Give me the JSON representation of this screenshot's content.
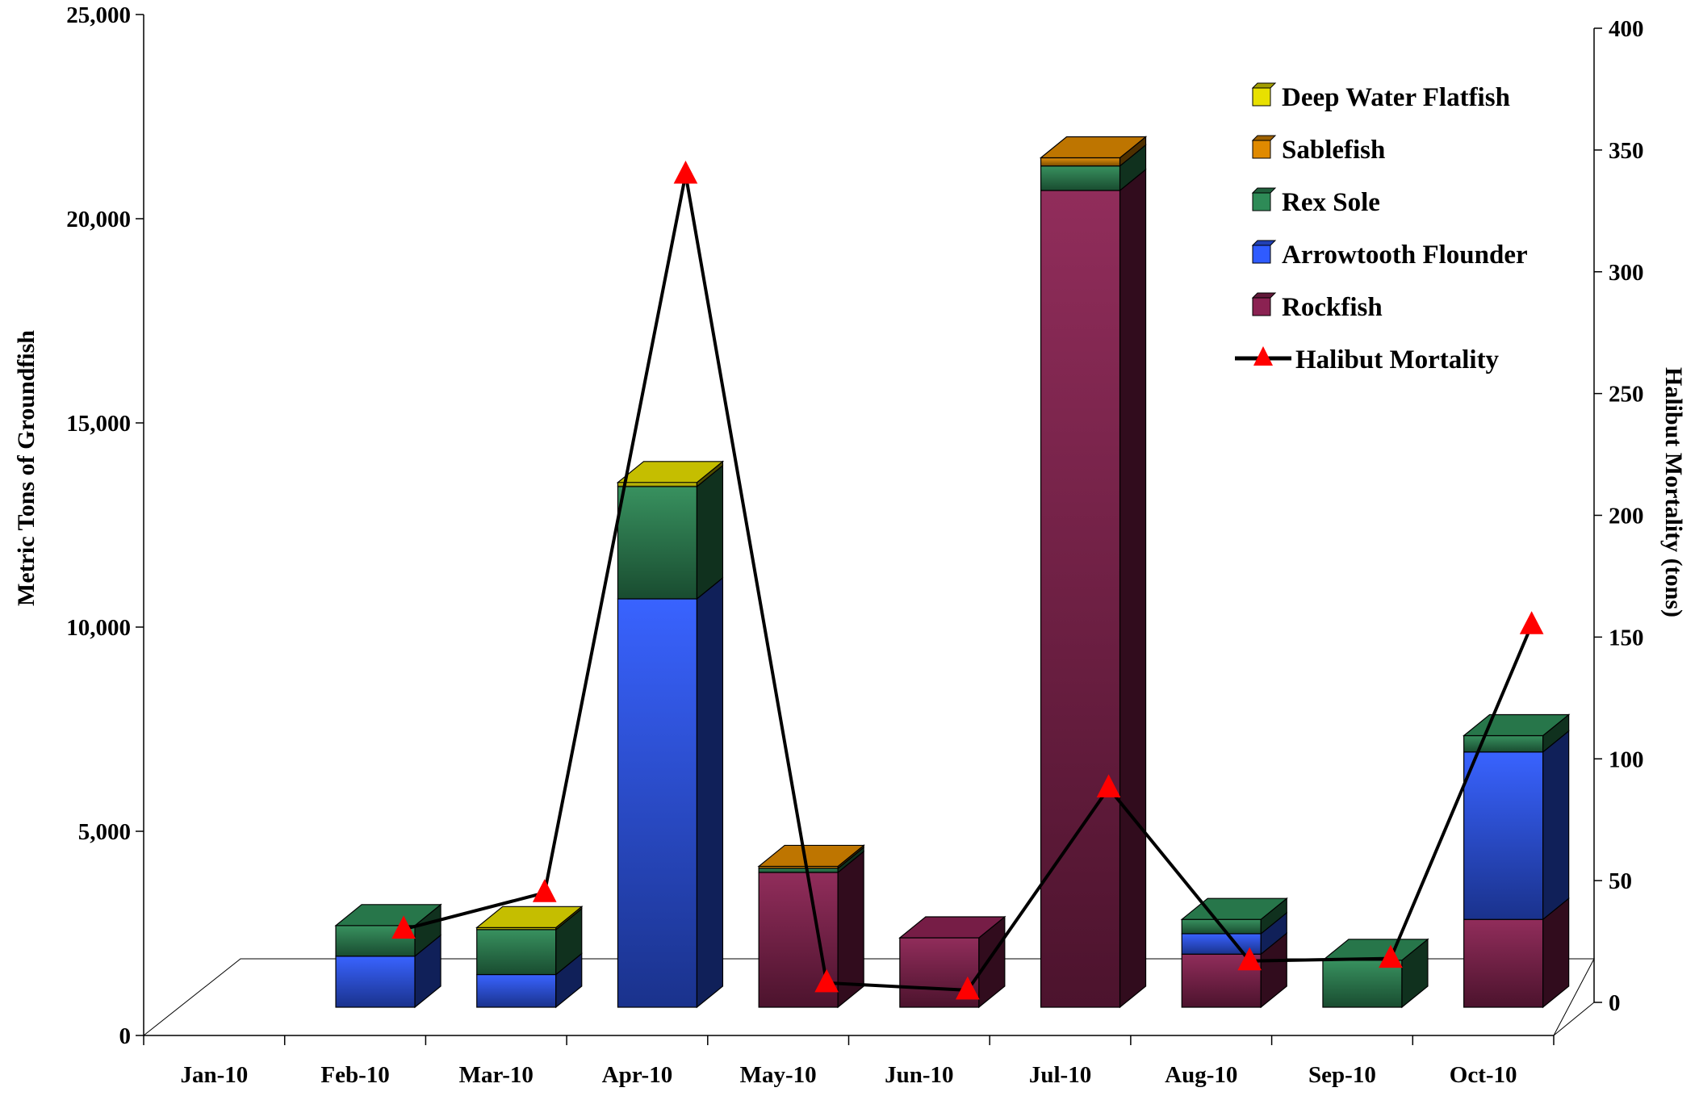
{
  "chart_data": {
    "type": "bar",
    "stacked": true,
    "three_d": true,
    "categories": [
      "Jan-10",
      "Feb-10",
      "Mar-10",
      "Apr-10",
      "May-10",
      "Jun-10",
      "Jul-10",
      "Aug-10",
      "Sep-10",
      "Oct-10"
    ],
    "series": [
      {
        "name": "Rockfish",
        "color": "#8B2252",
        "values": [
          0,
          0,
          0,
          0,
          3300,
          1700,
          20000,
          1300,
          0,
          2150
        ]
      },
      {
        "name": "Arrowtooth Flounder",
        "color": "#2F5BFF",
        "values": [
          0,
          1250,
          800,
          10000,
          0,
          0,
          0,
          500,
          0,
          4100
        ]
      },
      {
        "name": "Rex Sole",
        "color": "#2E8B57",
        "values": [
          0,
          750,
          1100,
          2750,
          100,
          0,
          600,
          350,
          1150,
          400
        ]
      },
      {
        "name": "Sablefish",
        "color": "#E08A00",
        "values": [
          0,
          0,
          0,
          0,
          50,
          0,
          200,
          0,
          0,
          0
        ]
      },
      {
        "name": "Deep Water Flatfish",
        "color": "#E8E000",
        "values": [
          0,
          0,
          50,
          100,
          0,
          0,
          0,
          0,
          0,
          0
        ]
      }
    ],
    "line_series": {
      "name": "Halibut Mortality",
      "axis": "secondary",
      "color": "#000000",
      "marker_color": "#FF0000",
      "values": [
        null,
        30,
        45,
        340,
        8,
        5,
        88,
        17,
        18,
        155
      ]
    },
    "y_left": {
      "label": "Metric Tons of Groundfish",
      "min": 0,
      "max": 25000,
      "ticks": [
        0,
        5000,
        10000,
        15000,
        20000,
        25000
      ],
      "tick_labels": [
        "0",
        "5,000",
        "10,000",
        "15,000",
        "20,000",
        "25,000"
      ]
    },
    "y_right": {
      "label": "Halibut Mortality (tons)",
      "min": 0,
      "max": 400,
      "ticks": [
        0,
        50,
        100,
        150,
        200,
        250,
        300,
        350,
        400
      ],
      "tick_labels": [
        "0",
        "50",
        "100",
        "150",
        "200",
        "250",
        "300",
        "350",
        "400"
      ]
    },
    "legend": {
      "position": "top-right",
      "entries": [
        "Deep Water Flatfish",
        "Sablefish",
        "Rex Sole",
        "Arrowtooth Flounder",
        "Rockfish",
        "Halibut Mortality"
      ]
    }
  }
}
